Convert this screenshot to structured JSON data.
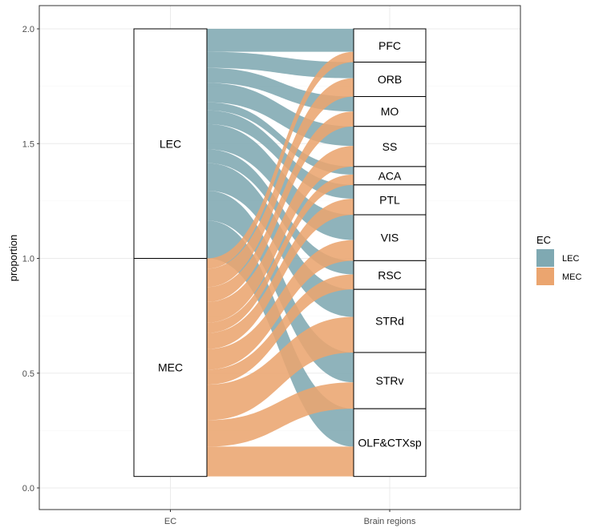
{
  "chart_data": {
    "type": "alluvial",
    "ylabel": "proportion",
    "ylim": [
      0,
      2.05
    ],
    "y_ticks": [
      {
        "value": 0.0,
        "label": "0.0"
      },
      {
        "value": 0.5,
        "label": "0.5"
      },
      {
        "value": 1.0,
        "label": "1.0"
      },
      {
        "value": 1.5,
        "label": "1.5"
      },
      {
        "value": 2.0,
        "label": "2.0"
      }
    ],
    "axes": [
      "EC",
      "Brain regions"
    ],
    "grid": true,
    "legend": {
      "title": "EC",
      "position": "right",
      "items": [
        {
          "name": "LEC",
          "color": "#7fa9b2"
        },
        {
          "name": "MEC",
          "color": "#eba56f"
        }
      ]
    },
    "ec_strata": [
      "LEC",
      "MEC"
    ],
    "regions": [
      "PFC",
      "ORB",
      "MO",
      "SS",
      "ACA",
      "PTL",
      "VIS",
      "RSC",
      "STRd",
      "STRv",
      "OLF&CTXsp"
    ],
    "flows": {
      "LEC": [
        0.1,
        0.07,
        0.065,
        0.085,
        0.035,
        0.06,
        0.11,
        0.06,
        0.12,
        0.13,
        0.165
      ],
      "MEC": [
        0.045,
        0.08,
        0.065,
        0.09,
        0.045,
        0.07,
        0.09,
        0.065,
        0.155,
        0.115,
        0.13
      ]
    }
  }
}
